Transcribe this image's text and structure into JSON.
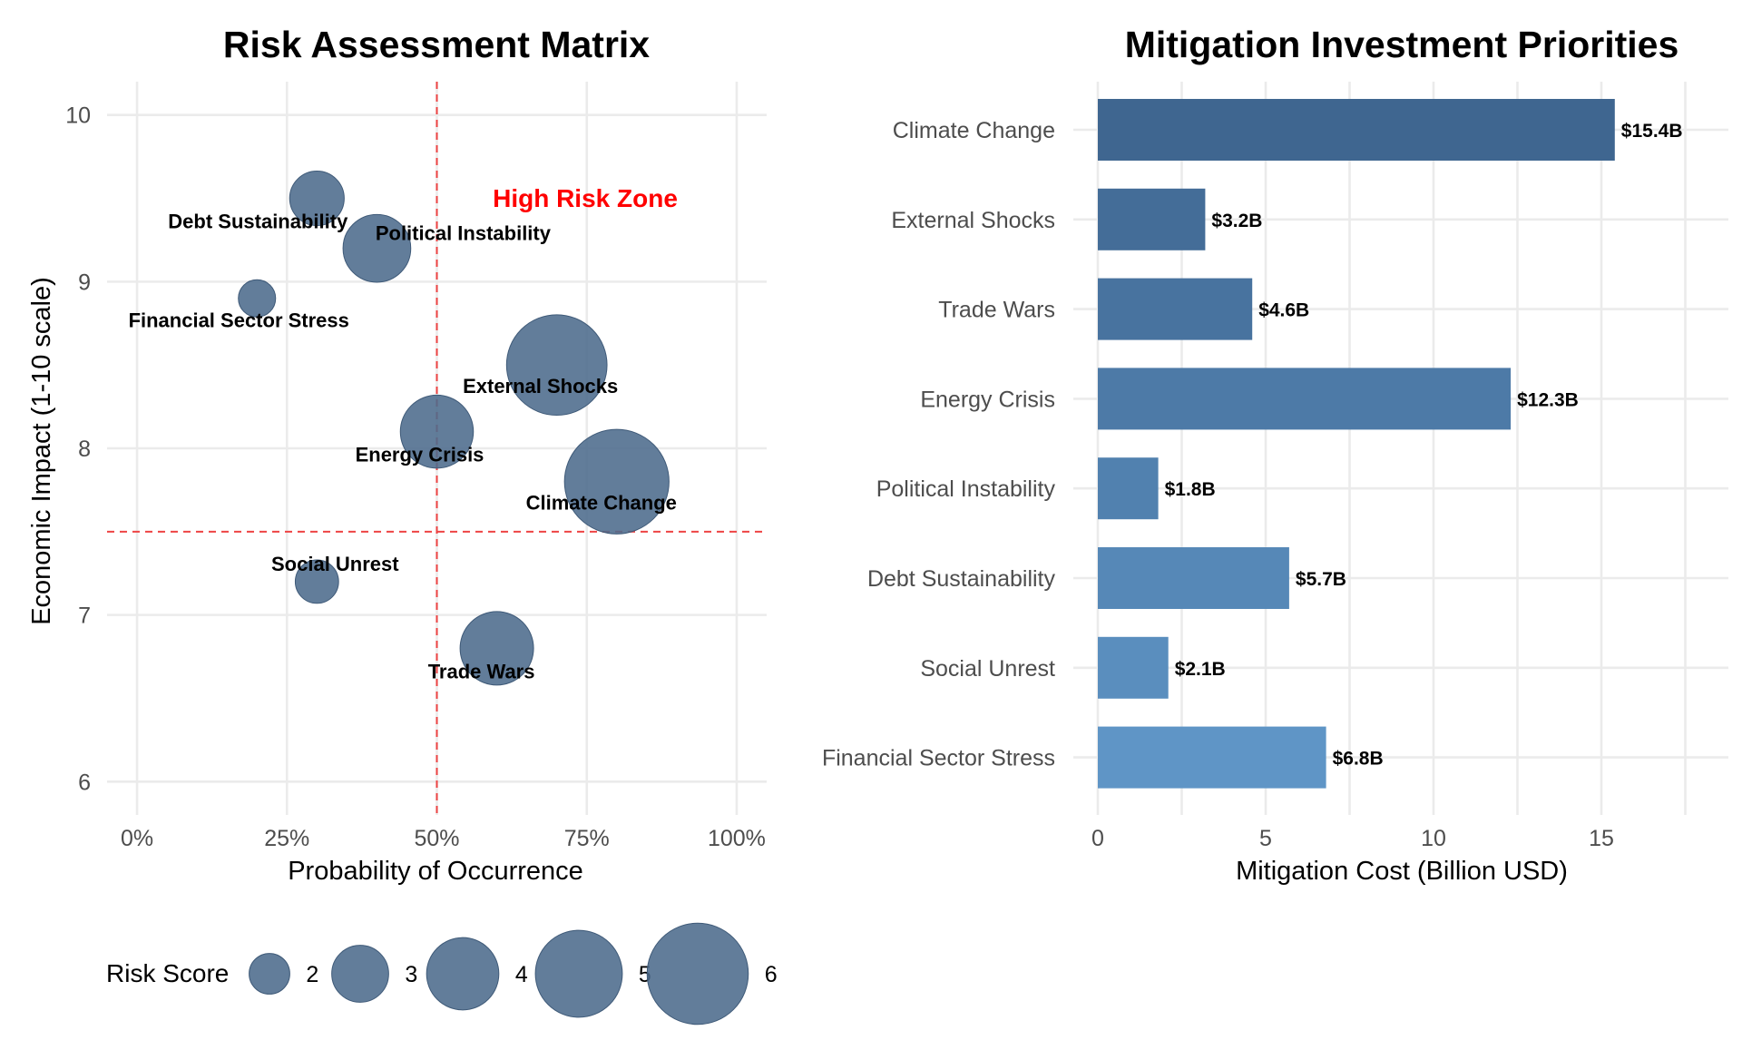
{
  "palette": {
    "bubble_fill": "#4c6b8c",
    "bubble_stroke": "#3f5a78",
    "bar_dark": "#3f6690",
    "bar_light": "#5f95c6",
    "ref_line": "#ee4444",
    "zone_text": "#ff0000",
    "grid": "#ebebeb"
  },
  "chart_data": [
    {
      "type": "scatter",
      "title": "Risk Assessment Matrix",
      "xlabel": "Probability of Occurrence",
      "ylabel": "Economic Impact (1-10 scale)",
      "xlim": [
        -0.05,
        1.05
      ],
      "ylim": [
        5.8,
        10.2
      ],
      "x_ticks": [
        0,
        0.25,
        0.5,
        0.75,
        1.0
      ],
      "x_tick_labels": [
        "0%",
        "25%",
        "50%",
        "75%",
        "100%"
      ],
      "y_ticks": [
        6,
        7,
        8,
        9,
        10
      ],
      "y_tick_labels": [
        "6",
        "7",
        "8",
        "9",
        "10"
      ],
      "grid": true,
      "reference_lines": {
        "x": 0.5,
        "y": 7.5,
        "style": "dashed"
      },
      "annotation": {
        "text": "High Risk Zone",
        "x": 0.75,
        "y": 9.5
      },
      "size_legend": {
        "title": "Risk Score",
        "values": [
          2,
          3,
          4,
          5,
          6
        ],
        "labels": [
          "2",
          "3",
          "4",
          "5",
          "6"
        ],
        "position": "bottom"
      },
      "points": [
        {
          "name": "Debt Sustainability",
          "x": 0.3,
          "y": 9.5,
          "size": 2.85
        },
        {
          "name": "Political Instability",
          "x": 0.4,
          "y": 9.2,
          "size": 3.7
        },
        {
          "name": "Financial Sector Stress",
          "x": 0.2,
          "y": 8.9,
          "size": 1.8
        },
        {
          "name": "External Shocks",
          "x": 0.7,
          "y": 8.5,
          "size": 5.95
        },
        {
          "name": "Energy Crisis",
          "x": 0.5,
          "y": 8.1,
          "size": 4.05
        },
        {
          "name": "Climate Change",
          "x": 0.8,
          "y": 7.8,
          "size": 6.24
        },
        {
          "name": "Social Unrest",
          "x": 0.3,
          "y": 7.2,
          "size": 2.16
        },
        {
          "name": "Trade Wars",
          "x": 0.6,
          "y": 6.8,
          "size": 4.08
        }
      ]
    },
    {
      "type": "bar",
      "orientation": "horizontal",
      "title": "Mitigation Investment Priorities",
      "xlabel": "Mitigation Cost (Billion USD)",
      "ylabel": "",
      "xlim": [
        0,
        18.5
      ],
      "x_ticks": [
        0,
        5,
        10,
        15
      ],
      "x_tick_labels": [
        "0",
        "5",
        "10",
        "15"
      ],
      "grid": true,
      "categories": [
        "Climate Change",
        "External Shocks",
        "Trade Wars",
        "Energy Crisis",
        "Political Instability",
        "Debt Sustainability",
        "Social Unrest",
        "Financial Sector Stress"
      ],
      "values": [
        15.4,
        3.2,
        4.6,
        12.3,
        1.8,
        5.7,
        2.1,
        6.8
      ],
      "value_labels": [
        "$15.4B",
        "$3.2B",
        "$4.6B",
        "$12.3B",
        "$1.8B",
        "$5.7B",
        "$2.1B",
        "$6.8B"
      ]
    }
  ]
}
